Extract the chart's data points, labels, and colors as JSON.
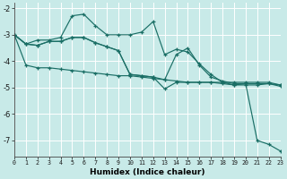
{
  "bg_color": "#c8eae8",
  "grid_color": "#ffffff",
  "line_color": "#1a6e65",
  "xlim": [
    0,
    23
  ],
  "ylim": [
    -7.6,
    -1.8
  ],
  "yticks": [
    -7,
    -6,
    -5,
    -4,
    -3,
    -2
  ],
  "xlabel": "Humidex (Indice chaleur)",
  "line1": [
    -3.0,
    -3.35,
    -3.2,
    -3.2,
    -3.1,
    -2.28,
    -2.22,
    -2.65,
    -3.0,
    -3.0,
    -3.0,
    -2.9,
    -2.5,
    -3.75,
    -3.55,
    -3.65,
    -4.1,
    -4.5,
    -4.8,
    -4.9,
    -4.85,
    -7.0,
    -7.15,
    -7.4
  ],
  "line2": [
    -3.0,
    -3.35,
    -3.4,
    -3.25,
    -3.25,
    -3.1,
    -3.1,
    -3.3,
    -3.45,
    -3.6,
    -4.5,
    -4.55,
    -4.6,
    -5.05,
    -4.8,
    -4.8,
    -4.8,
    -4.8,
    -4.8,
    -4.8,
    -4.8,
    -4.8,
    -4.8,
    -4.9
  ],
  "line3": [
    -3.0,
    -3.35,
    -3.4,
    -3.25,
    -3.25,
    -3.1,
    -3.1,
    -3.3,
    -3.45,
    -3.6,
    -4.5,
    -4.55,
    -4.6,
    -4.7,
    -3.75,
    -3.5,
    -4.15,
    -4.6,
    -4.75,
    -4.85,
    -4.85,
    -4.85,
    -4.85,
    -4.9
  ],
  "line4": [
    -3.0,
    -4.15,
    -4.25,
    -4.25,
    -4.3,
    -4.35,
    -4.4,
    -4.45,
    -4.5,
    -4.55,
    -4.55,
    -4.6,
    -4.65,
    -4.7,
    -4.75,
    -4.8,
    -4.8,
    -4.8,
    -4.85,
    -4.9,
    -4.9,
    -4.9,
    -4.85,
    -4.95
  ]
}
